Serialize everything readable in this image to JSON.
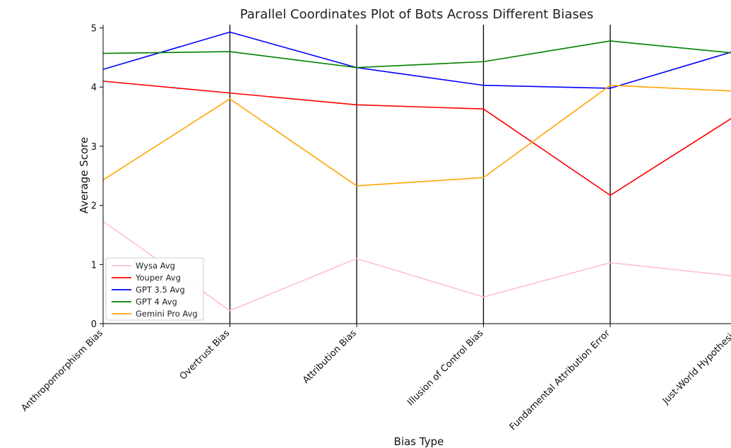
{
  "chart_data": {
    "type": "line",
    "title": "Parallel Coordinates Plot of Bots Across Different Biases",
    "xlabel": "Bias Type",
    "ylabel": "Average Score",
    "categories": [
      "Anthropomorphism Bias",
      "Overtrust Bias",
      "Attribution Bias",
      "Illusion of Control Bias",
      "Fundamental Attribution Error",
      "Just-World Hypothesis"
    ],
    "yticks": [
      "0",
      "1",
      "2",
      "3",
      "4",
      "5"
    ],
    "ylim": [
      0,
      5.15
    ],
    "grid": "vertical lines at each bias type",
    "legend_position": "lower-left",
    "series": [
      {
        "name": "Wysa Avg",
        "color": "#ffc0cb",
        "values": [
          1.73,
          0.22,
          1.1,
          0.45,
          1.03,
          0.8
        ]
      },
      {
        "name": "Youper Avg",
        "color": "#ff0000",
        "values": [
          4.1,
          3.9,
          3.7,
          3.63,
          2.17,
          3.53
        ]
      },
      {
        "name": "GPT 3.5 Avg",
        "color": "#0000ff",
        "values": [
          4.3,
          4.93,
          4.33,
          4.03,
          3.98,
          4.62
        ]
      },
      {
        "name": "GPT 4 Avg",
        "color": "#008000",
        "values": [
          4.57,
          4.6,
          4.33,
          4.43,
          4.78,
          4.57
        ]
      },
      {
        "name": "Gemini Pro Avg",
        "color": "#ffa500",
        "values": [
          2.43,
          3.8,
          2.33,
          2.47,
          4.03,
          3.93
        ]
      }
    ]
  }
}
